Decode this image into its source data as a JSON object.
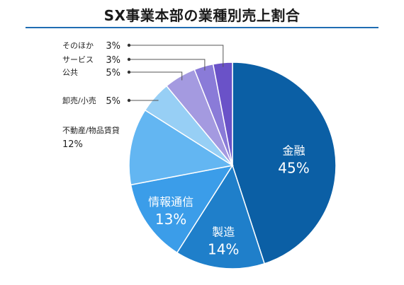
{
  "chart_data": {
    "type": "pie",
    "title": "SX事業本部の業種別売上割合",
    "slices": [
      {
        "label": "金融",
        "value": 45,
        "display": "45%",
        "color": "#0b5fa5",
        "placement": "inside"
      },
      {
        "label": "製造",
        "value": 14,
        "display": "14%",
        "color": "#1f7fca",
        "placement": "inside"
      },
      {
        "label": "情報通信",
        "value": 13,
        "display": "13%",
        "color": "#3b9de9",
        "placement": "inside"
      },
      {
        "label": "不動産/物品賃貸",
        "value": 12,
        "display": "12%",
        "color": "#63b6f2",
        "placement": "outside-stacked"
      },
      {
        "label": "卸売/小売",
        "value": 5,
        "display": "5%",
        "color": "#97cff5",
        "placement": "outside"
      },
      {
        "label": "公共",
        "value": 5,
        "display": "5%",
        "color": "#a49ae0",
        "placement": "outside"
      },
      {
        "label": "サービス",
        "value": 3,
        "display": "3%",
        "color": "#8a7bd8",
        "placement": "outside"
      },
      {
        "label": "そのほか",
        "value": 3,
        "display": "3%",
        "color": "#6a52c8",
        "placement": "outside"
      }
    ]
  }
}
